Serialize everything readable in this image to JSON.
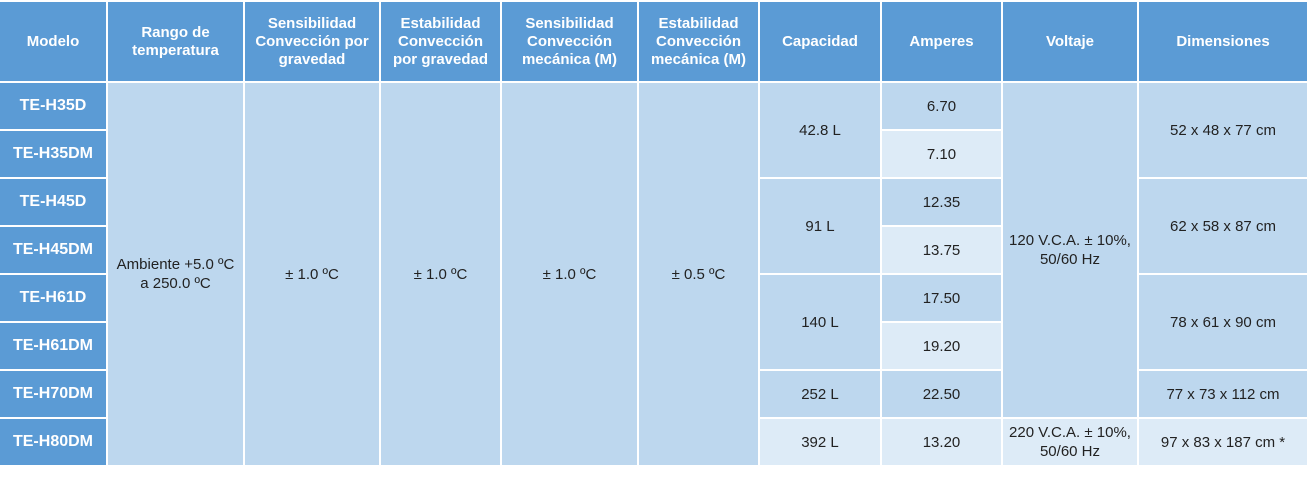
{
  "table": {
    "header": [
      "Modelo",
      "Rango de temperatura",
      "Sensibilidad Convección por gravedad",
      "Estabilidad Convección por gravedad",
      "Sensibilidad Convección mecánica (M)",
      "Estabilidad Convección mecánica (M)",
      "Capacidad",
      "Amperes",
      "Voltaje",
      "Dimensiones"
    ],
    "models": [
      "TE-H35D",
      "TE-H35DM",
      "TE-H45D",
      "TE-H45DM",
      "TE-H61D",
      "TE-H61DM",
      "TE-H70DM",
      "TE-H80DM"
    ],
    "range": "Ambiente +5.0 ºC a 250.0 ºC",
    "sens_gravity": "± 1.0 ºC",
    "stab_gravity": "± 1.0 ºC",
    "sens_mechanical": "± 1.0 ºC",
    "stab_mechanical": "± 0.5 ºC",
    "capacities": [
      "42.8 L",
      "91 L",
      "140 L",
      "252 L",
      "392 L"
    ],
    "amperes": [
      "6.70",
      "7.10",
      "12.35",
      "13.75",
      "17.50",
      "19.20",
      "22.50",
      "13.20"
    ],
    "voltages": [
      "120 V.C.A. ± 10%, 50/60 Hz",
      "220 V.C.A. ± 10%, 50/60 Hz"
    ],
    "dimensions": [
      "52 x 48 x 77 cm",
      "62 x 58 x 87 cm",
      "78 x 61 x 90 cm",
      "77 x 73 x 112 cm",
      "97 x 83 x 187 cm *"
    ]
  }
}
